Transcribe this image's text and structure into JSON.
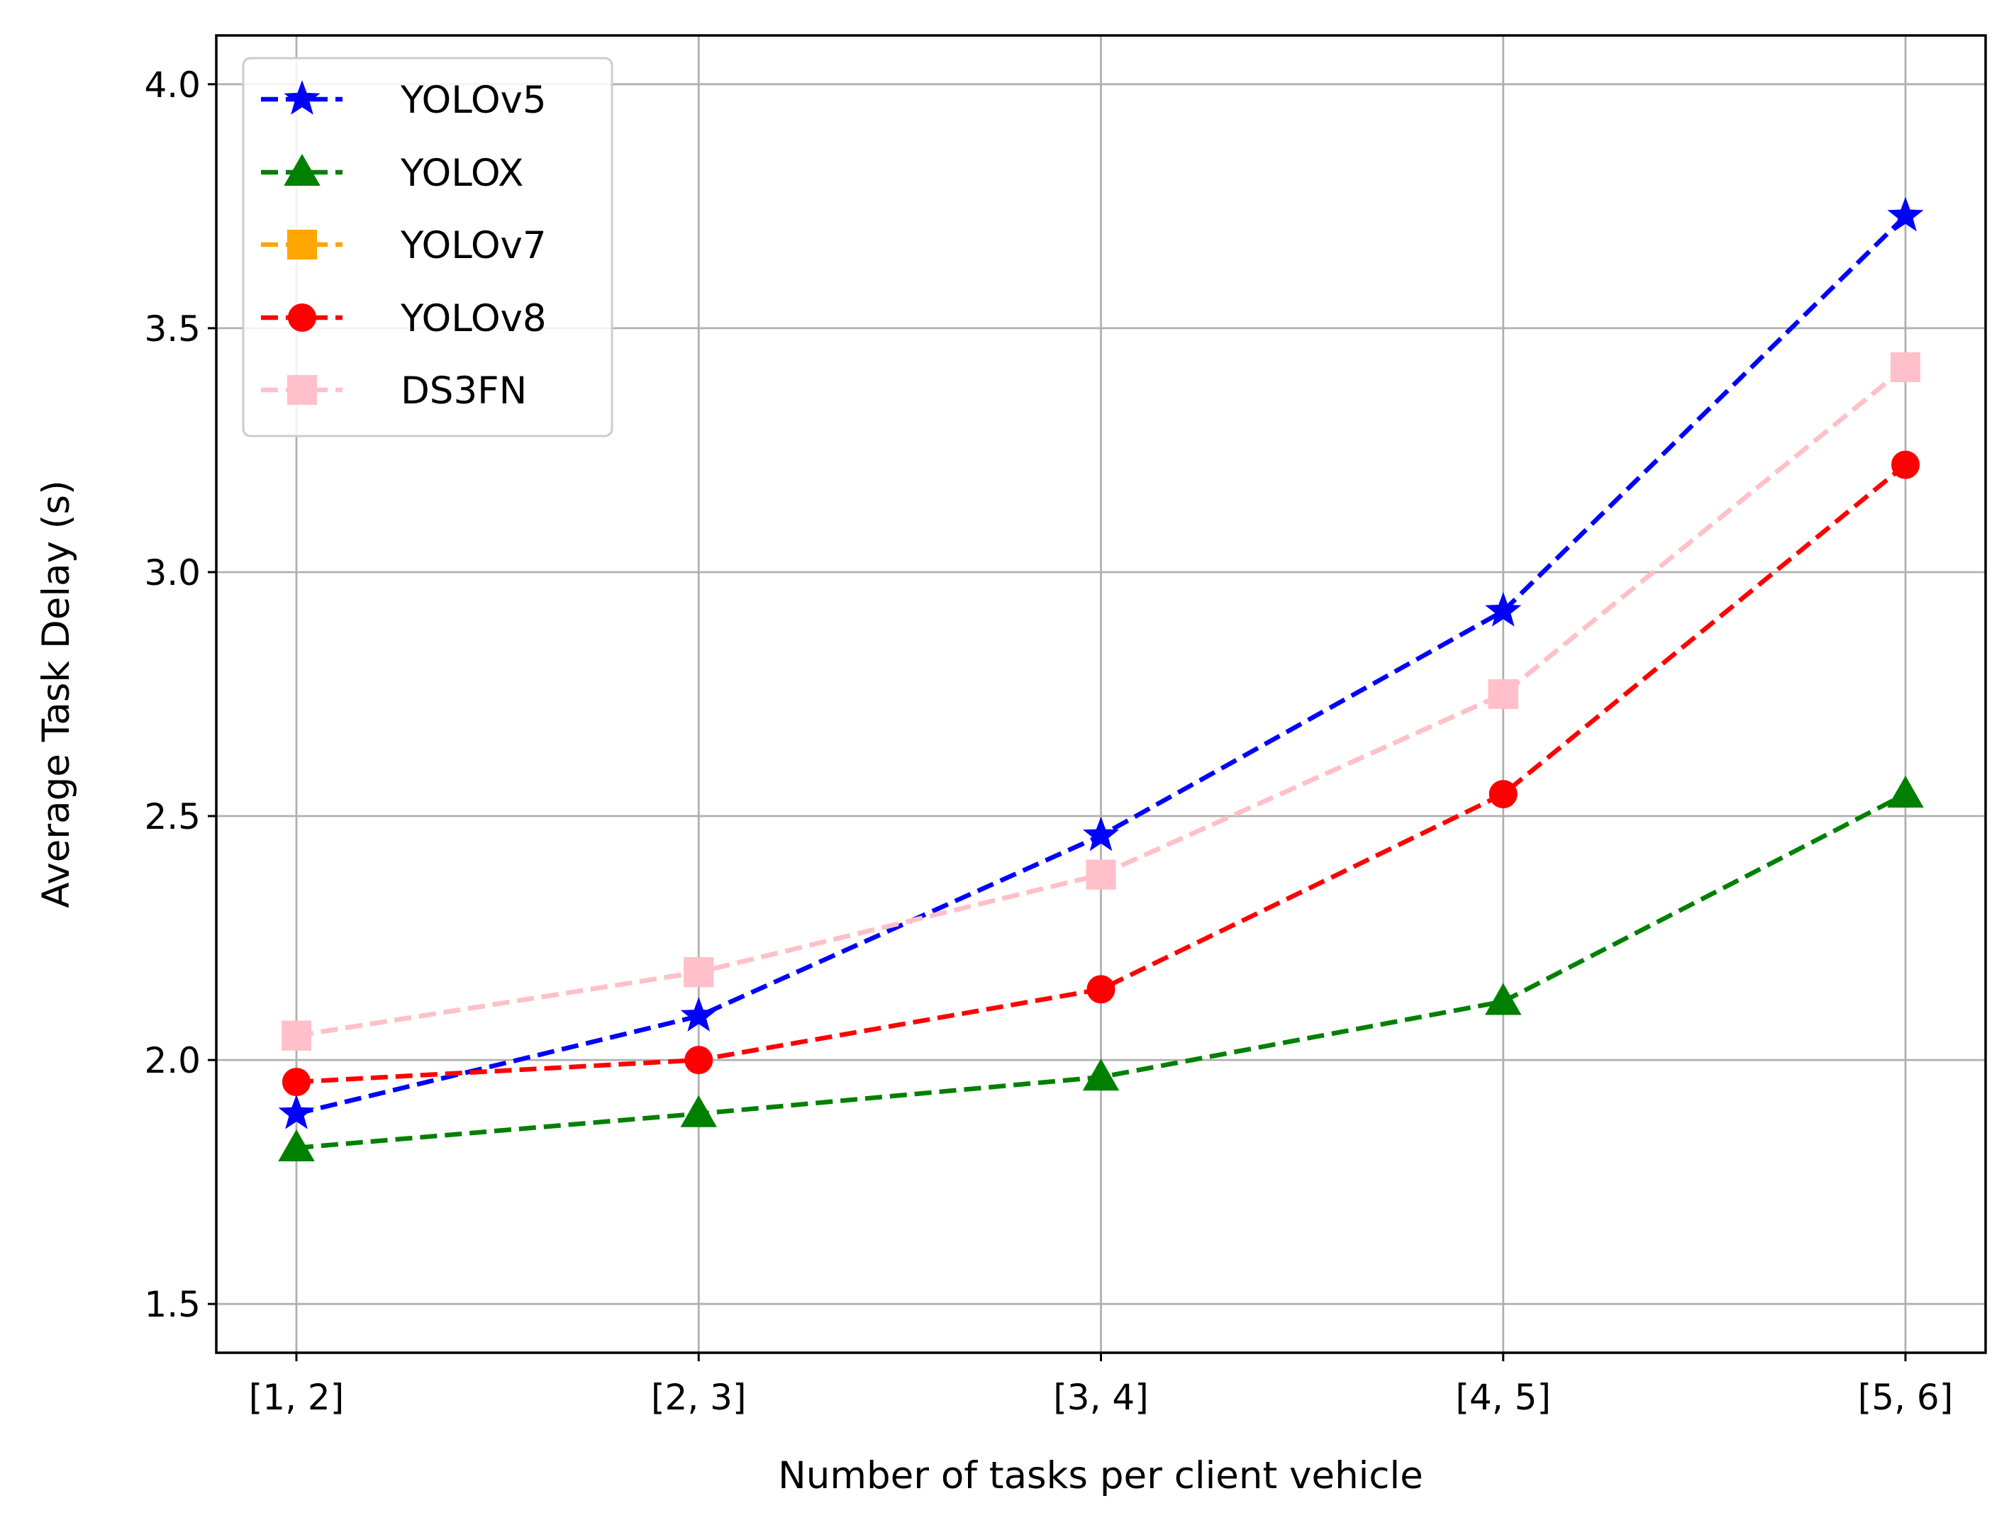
{
  "chart_data": {
    "type": "line",
    "title": "",
    "xlabel": "Number of tasks per client vehicle",
    "ylabel": "Average Task Delay (s)",
    "categories": [
      "[1, 2]",
      "[2, 3]",
      "[3, 4]",
      "[4, 5]",
      "[5, 6]"
    ],
    "ylim": [
      1.4,
      4.1
    ],
    "yticks": [
      "1.5",
      "2.0",
      "2.5",
      "3.0",
      "3.5",
      "4.0"
    ],
    "grid": true,
    "legend_position": "top-left",
    "series": [
      {
        "name": "YOLOv5",
        "color": "#0000ff",
        "marker": "star",
        "values": [
          1.89,
          2.09,
          2.46,
          2.92,
          3.73
        ]
      },
      {
        "name": "YOLOX",
        "color": "#008000",
        "marker": "triangle",
        "values": [
          1.82,
          1.89,
          1.965,
          2.12,
          2.545
        ]
      },
      {
        "name": "YOLOv7",
        "color": "#ffa500",
        "marker": "square",
        "values": [
          2.05,
          2.18,
          2.38,
          2.75,
          3.42
        ]
      },
      {
        "name": "YOLOv8",
        "color": "#ff0000",
        "marker": "circle",
        "values": [
          1.955,
          2.0,
          2.145,
          2.545,
          3.22
        ]
      },
      {
        "name": "DS3FN",
        "color": "#ffc0cb",
        "marker": "square",
        "values": [
          2.05,
          2.18,
          2.38,
          2.75,
          3.42
        ]
      }
    ]
  }
}
